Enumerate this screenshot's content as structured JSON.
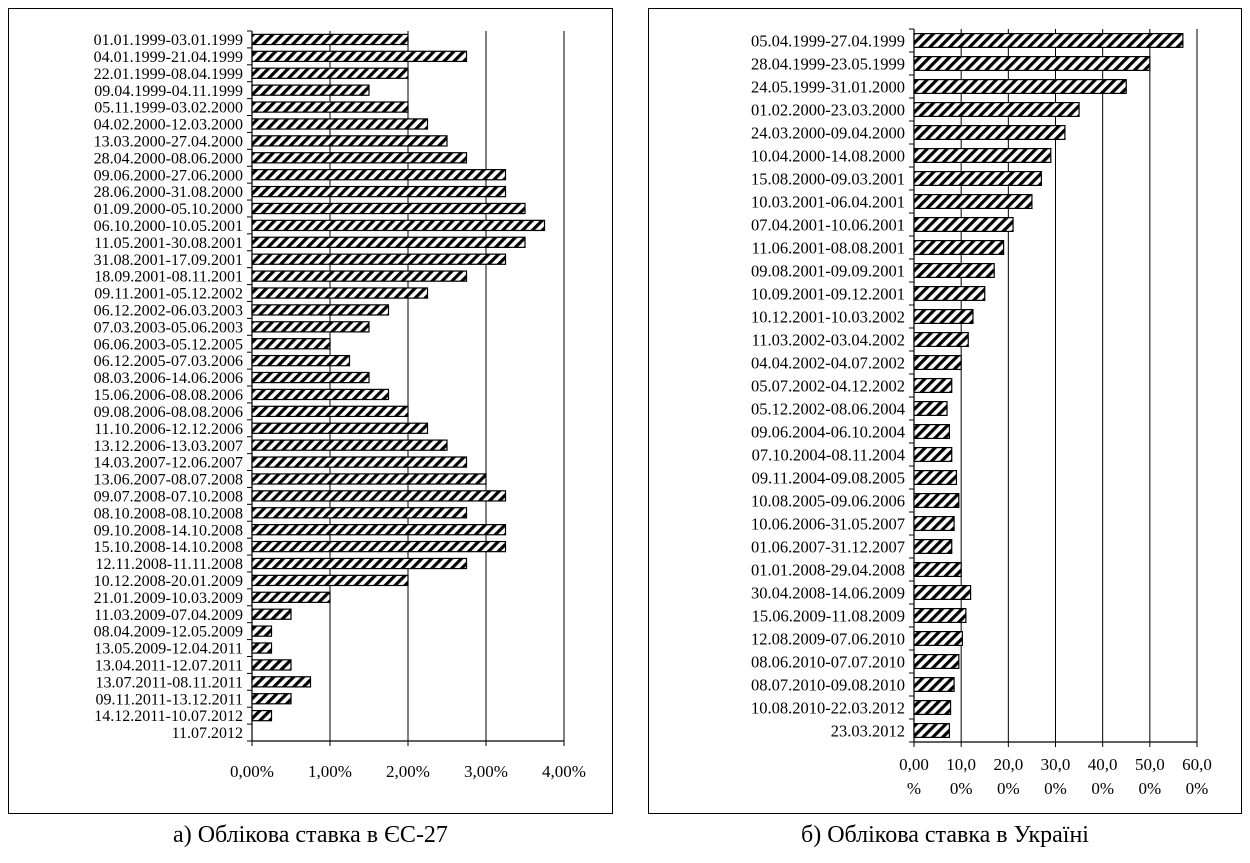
{
  "chart_data": [
    {
      "type": "bar",
      "orientation": "horizontal",
      "categories": [
        "01.01.1999-03.01.1999",
        "04.01.1999-21.04.1999",
        "22.01.1999-08.04.1999",
        "09.04.1999-04.11.1999",
        "05.11.1999-03.02.2000",
        "04.02.2000-12.03.2000",
        "13.03.2000-27.04.2000",
        "28.04.2000-08.06.2000",
        "09.06.2000-27.06.2000",
        "28.06.2000-31.08.2000",
        "01.09.2000-05.10.2000",
        "06.10.2000-10.05.2001",
        "11.05.2001-30.08.2001",
        "31.08.2001-17.09.2001",
        "18.09.2001-08.11.2001",
        "09.11.2001-05.12.2002",
        "06.12.2002-06.03.2003",
        "07.03.2003-05.06.2003",
        "06.06.2003-05.12.2005",
        "06.12.2005-07.03.2006",
        "08.03.2006-14.06.2006",
        "15.06.2006-08.08.2006",
        "09.08.2006-08.08.2006",
        "11.10.2006-12.12.2006",
        "13.12.2006-13.03.2007",
        "14.03.2007-12.06.2007",
        "13.06.2007-08.07.2008",
        "09.07.2008-07.10.2008",
        "08.10.2008-08.10.2008",
        "09.10.2008-14.10.2008",
        "15.10.2008-14.10.2008",
        "12.11.2008-11.11.2008",
        "10.12.2008-20.01.2009",
        "21.01.2009-10.03.2009",
        "11.03.2009-07.04.2009",
        "08.04.2009-12.05.2009",
        "13.05.2009-12.04.2011",
        "13.04.2011-12.07.2011",
        "13.07.2011-08.11.2011",
        "09.11.2011-13.12.2011",
        "14.12.2011-10.07.2012",
        "11.07.2012"
      ],
      "values": [
        2.0,
        2.75,
        2.0,
        1.5,
        2.0,
        2.25,
        2.5,
        2.75,
        3.25,
        3.25,
        3.5,
        3.75,
        3.5,
        3.25,
        2.75,
        2.25,
        1.75,
        1.5,
        1.0,
        1.25,
        1.5,
        1.75,
        2.0,
        2.25,
        2.5,
        2.75,
        3.0,
        3.25,
        2.75,
        3.25,
        3.25,
        2.75,
        2.0,
        1.0,
        0.5,
        0.25,
        0.25,
        0.5,
        0.75,
        0.5,
        0.25,
        0.0
      ],
      "xlim": [
        0,
        4
      ],
      "xticks": [
        0,
        1,
        2,
        3,
        4
      ],
      "xtick_labels": [
        "0,00%",
        "1,00%",
        "2,00%",
        "3,00%",
        "4,00%"
      ],
      "grid": true,
      "caption": "а) Облікова ставка в ЄС-27"
    },
    {
      "type": "bar",
      "orientation": "horizontal",
      "categories": [
        "05.04.1999-27.04.1999",
        "28.04.1999-23.05.1999",
        "24.05.1999-31.01.2000",
        "01.02.2000-23.03.2000",
        "24.03.2000-09.04.2000",
        "10.04.2000-14.08.2000",
        "15.08.2000-09.03.2001",
        "10.03.2001-06.04.2001",
        "07.04.2001-10.06.2001",
        "11.06.2001-08.08.2001",
        "09.08.2001-09.09.2001",
        "10.09.2001-09.12.2001",
        "10.12.2001-10.03.2002",
        "11.03.2002-03.04.2002",
        "04.04.2002-04.07.2002",
        "05.07.2002-04.12.2002",
        "05.12.2002-08.06.2004",
        "09.06.2004-06.10.2004",
        "07.10.2004-08.11.2004",
        "09.11.2004-09.08.2005",
        "10.08.2005-09.06.2006",
        "10.06.2006-31.05.2007",
        "01.06.2007-31.12.2007",
        "01.01.2008-29.04.2008",
        "30.04.2008-14.06.2009",
        "15.06.2009-11.08.2009",
        "12.08.2009-07.06.2010",
        "08.06.2010-07.07.2010",
        "08.07.2010-09.08.2010",
        "10.08.2010-22.03.2012",
        "23.03.2012"
      ],
      "values": [
        57,
        50,
        45,
        35,
        32,
        29,
        27,
        25,
        21,
        19,
        17,
        15,
        12.5,
        11.5,
        10,
        8,
        7,
        7.5,
        8,
        9,
        9.5,
        8.5,
        8,
        10,
        12,
        11,
        10.25,
        9.5,
        8.5,
        7.75,
        7.5
      ],
      "xlim": [
        0,
        60
      ],
      "xticks": [
        0,
        10,
        20,
        30,
        40,
        50,
        60
      ],
      "xtick_labels_line1": [
        "0,00",
        "10,0",
        "20,0",
        "30,0",
        "40,0",
        "50,0",
        "60,0"
      ],
      "xtick_labels_line2": [
        "%",
        "0%",
        "0%",
        "0%",
        "0%",
        "0%",
        "0%"
      ],
      "grid": true,
      "caption": "б) Облікова ставка в Україні"
    }
  ],
  "colors": {
    "bar_stroke": "#000000",
    "hatch": "#000000",
    "grid": "#000000"
  }
}
